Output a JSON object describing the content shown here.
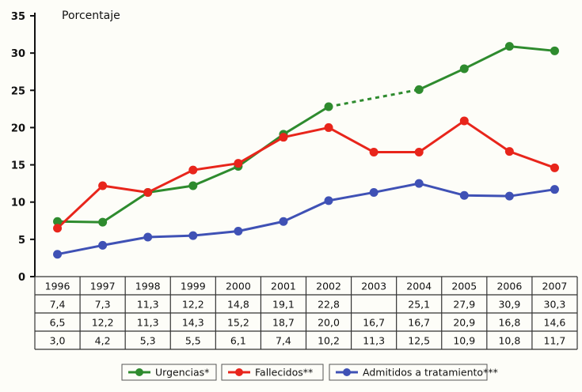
{
  "chart_data": {
    "type": "line",
    "ylabel": "Porcentaje",
    "ylim": [
      0,
      35
    ],
    "yticks": [
      "0",
      "5",
      "10",
      "15",
      "20",
      "25",
      "30",
      "35"
    ],
    "categories": [
      "1996",
      "1997",
      "1998",
      "1999",
      "2000",
      "2001",
      "2002",
      "2003",
      "2004",
      "2005",
      "2006",
      "2007"
    ],
    "grid": false,
    "legend_position": "bottom",
    "series": [
      {
        "name": "Urgencias*",
        "color": "#2e8b2e",
        "values": [
          7.4,
          7.3,
          11.3,
          12.2,
          14.8,
          19.1,
          22.8,
          null,
          25.1,
          27.9,
          30.9,
          30.3
        ],
        "labels": [
          "7,4",
          "7,3",
          "11,3",
          "12,2",
          "14,8",
          "19,1",
          "22,8",
          "",
          "25,1",
          "27,9",
          "30,9",
          "30,3"
        ],
        "gap_style": "dotted"
      },
      {
        "name": "Fallecidos**",
        "color": "#e8251b",
        "values": [
          6.5,
          12.2,
          11.3,
          14.3,
          15.2,
          18.7,
          20.0,
          16.7,
          16.7,
          20.9,
          16.8,
          14.6
        ],
        "labels": [
          "6,5",
          "12,2",
          "11,3",
          "14,3",
          "15,2",
          "18,7",
          "20,0",
          "16,7",
          "16,7",
          "20,9",
          "16,8",
          "14,6"
        ]
      },
      {
        "name": "Admitidos a tratamiento***",
        "color": "#3f51b5",
        "values": [
          3.0,
          4.2,
          5.3,
          5.5,
          6.1,
          7.4,
          10.2,
          11.3,
          12.5,
          10.9,
          10.8,
          11.7
        ],
        "labels": [
          "3,0",
          "4,2",
          "5,3",
          "5,5",
          "6,1",
          "7,4",
          "10,2",
          "11,3",
          "12,5",
          "10,9",
          "10,8",
          "11,7"
        ]
      }
    ]
  }
}
